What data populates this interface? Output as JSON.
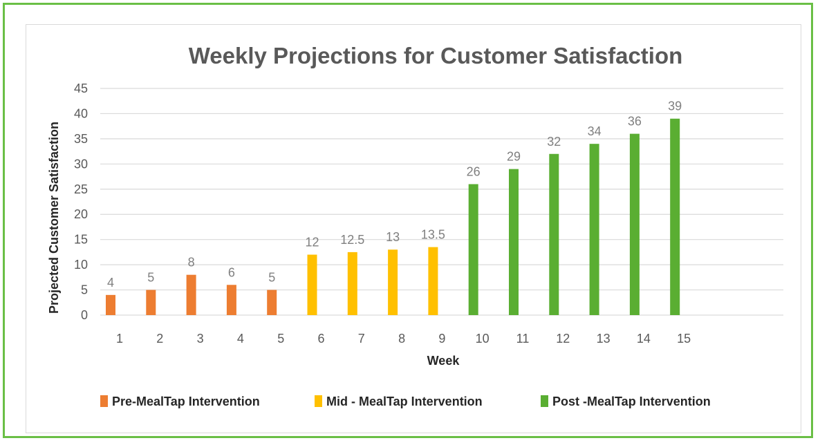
{
  "chart_data": {
    "type": "bar",
    "title": "Weekly Projections for Customer Satisfaction",
    "xlabel": "Week",
    "ylabel": "Projected Customer Satisfaction",
    "ylim": [
      0,
      45
    ],
    "yticks": [
      "0",
      "5",
      "10",
      "15",
      "20",
      "25",
      "30",
      "35",
      "40",
      "45"
    ],
    "categories": [
      "1",
      "2",
      "3",
      "4",
      "5",
      "6",
      "7",
      "8",
      "9",
      "10",
      "11",
      "12",
      "13",
      "14",
      "15"
    ],
    "grid": true,
    "legend_position": "bottom",
    "series": [
      {
        "name": "Pre-MealTap Intervention",
        "color": "#ed7d31",
        "values": [
          4,
          5,
          8,
          6,
          5,
          null,
          null,
          null,
          null,
          null,
          null,
          null,
          null,
          null,
          null
        ],
        "labels": [
          "4",
          "5",
          "8",
          "6",
          "5"
        ]
      },
      {
        "name": "Mid - MealTap Intervention",
        "color": "#ffc000",
        "values": [
          null,
          null,
          null,
          null,
          null,
          12,
          12.5,
          13,
          13.5,
          null,
          null,
          null,
          null,
          null,
          null
        ],
        "labels": [
          "12",
          "12.5",
          "13",
          "13.5"
        ]
      },
      {
        "name": "Post -MealTap Intervention",
        "color": "#5aae32",
        "values": [
          null,
          null,
          null,
          null,
          null,
          null,
          null,
          null,
          null,
          26,
          29,
          32,
          34,
          36,
          39
        ],
        "labels": [
          "26",
          "29",
          "32",
          "34",
          "36",
          "39"
        ]
      }
    ]
  }
}
